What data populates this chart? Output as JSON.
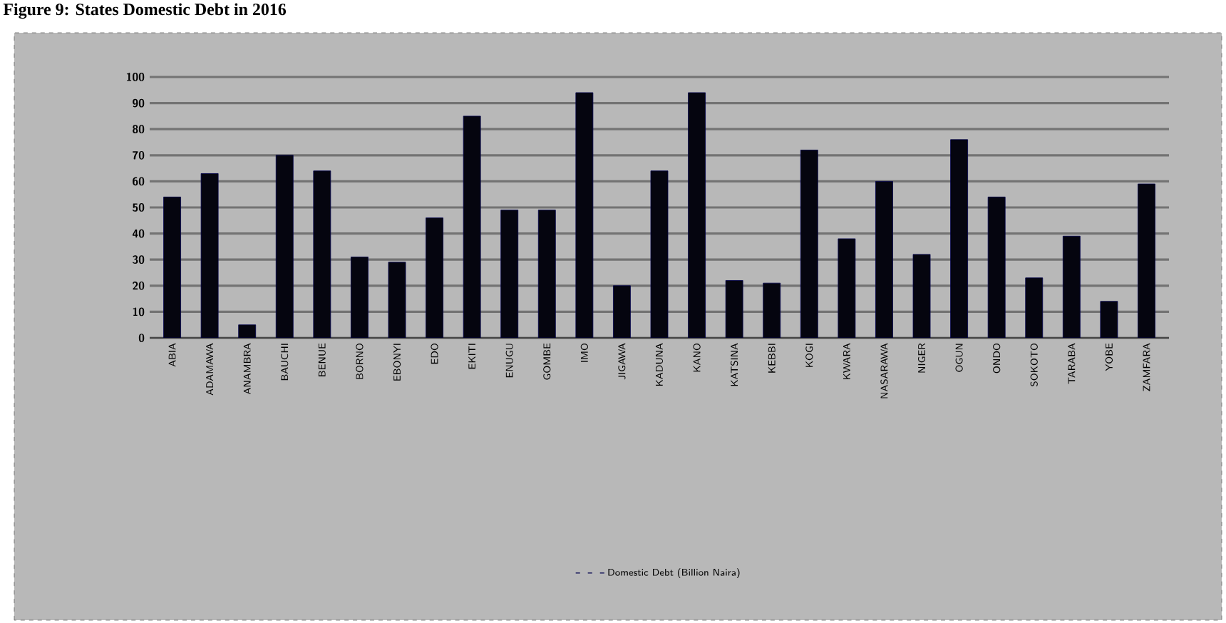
{
  "chart_data": {
    "type": "bar",
    "title": "Figure 9: States Domestic Debt in 2016",
    "categories": [
      "ABIA",
      "ADAMAWA",
      "ANAMBRA",
      "BAUCHI",
      "BENUE",
      "BORNO",
      "EBONYI",
      "EDO",
      "EKITI",
      "ENUGU",
      "GOMBE",
      "IMO",
      "JIGAWA",
      "KADUNA",
      "KANO",
      "KATSINA",
      "KEBBI",
      "KOGI",
      "KWARA",
      "NASARAWA",
      "NIGER",
      "OGUN",
      "ONDO",
      "SOKOTO",
      "TARABA",
      "YOBE",
      "ZAMFARA"
    ],
    "series": [
      {
        "name": "Domestic Debt (Billion Naira)",
        "color": "#05050f",
        "values": [
          54,
          63,
          5,
          70,
          64,
          31,
          29,
          46,
          85,
          49,
          49,
          94,
          20,
          64,
          94,
          22,
          21,
          72,
          38,
          60,
          32,
          76,
          54,
          23,
          39,
          14,
          59
        ]
      }
    ],
    "ylim": [
      0,
      100
    ],
    "yticks": [
      0,
      10,
      20,
      30,
      40,
      50,
      60,
      70,
      80,
      90,
      100
    ],
    "grid": "y",
    "legend": "bottom"
  }
}
